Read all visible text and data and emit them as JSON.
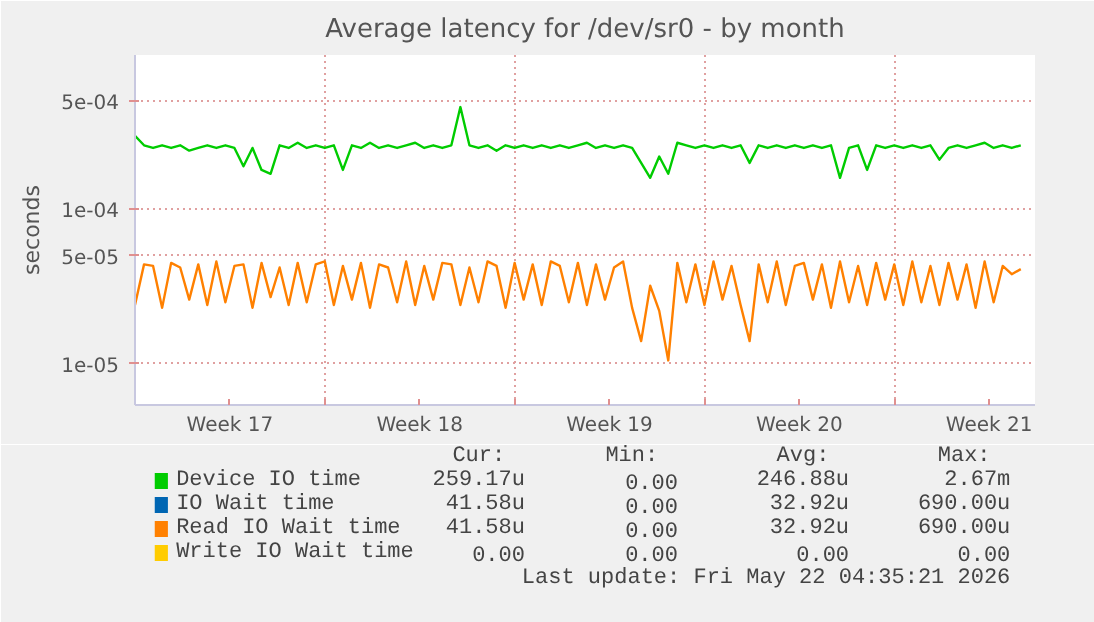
{
  "chart_data": {
    "type": "line",
    "title": "Average latency for /dev/sr0 - by month",
    "ylabel": "seconds",
    "log": "y",
    "grid": true,
    "legend": "bottom",
    "marker": "none",
    "line_style": "solid",
    "xlim": [
      "2026-04-19",
      "2026-05-22T04:35"
    ],
    "ylim": [
      5.4e-06,
      0.001
    ],
    "xticks": [
      {
        "value": "2026-04-19",
        "label": null
      },
      {
        "value": "2026-04-26",
        "label": null
      },
      {
        "value": "2026-05-03",
        "label": null
      },
      {
        "value": "2026-05-10",
        "label": null
      },
      {
        "value": "2026-05-17",
        "label": null
      },
      {
        "value": "2026-04-22T12:00",
        "label": "Week 17"
      },
      {
        "value": "2026-04-29T12:00",
        "label": "Week 18"
      },
      {
        "value": "2026-05-06T12:00",
        "label": "Week 19"
      },
      {
        "value": "2026-05-13T12:00",
        "label": "Week 20"
      },
      {
        "value": "2026-05-20T12:00",
        "label": "Week 21"
      }
    ],
    "yticks": [
      {
        "value": 1e-05,
        "label": "1e-05"
      },
      {
        "value": 5e-05,
        "label": "5e-05"
      },
      {
        "value": 0.0001,
        "label": "1e-04"
      },
      {
        "value": 0.0005,
        "label": "5e-04"
      }
    ],
    "x": [
      "2026-04-19T00:00",
      "2026-04-19T08:00",
      "2026-04-19T16:00",
      "2026-04-20T00:00",
      "2026-04-20T08:00",
      "2026-04-20T16:00",
      "2026-04-21T00:00",
      "2026-04-21T08:00",
      "2026-04-21T16:00",
      "2026-04-22T00:00",
      "2026-04-22T08:00",
      "2026-04-22T16:00",
      "2026-04-23T00:00",
      "2026-04-23T08:00",
      "2026-04-23T16:00",
      "2026-04-24T00:00",
      "2026-04-24T08:00",
      "2026-04-24T16:00",
      "2026-04-25T00:00",
      "2026-04-25T08:00",
      "2026-04-25T16:00",
      "2026-04-26T00:00",
      "2026-04-26T08:00",
      "2026-04-26T16:00",
      "2026-04-27T00:00",
      "2026-04-27T08:00",
      "2026-04-27T16:00",
      "2026-04-28T00:00",
      "2026-04-28T08:00",
      "2026-04-28T16:00",
      "2026-04-29T00:00",
      "2026-04-29T08:00",
      "2026-04-29T16:00",
      "2026-04-30T00:00",
      "2026-04-30T08:00",
      "2026-04-30T16:00",
      "2026-05-01T00:00",
      "2026-05-01T08:00",
      "2026-05-01T16:00",
      "2026-05-02T00:00",
      "2026-05-02T08:00",
      "2026-05-02T16:00",
      "2026-05-03T00:00",
      "2026-05-03T08:00",
      "2026-05-03T16:00",
      "2026-05-04T00:00",
      "2026-05-04T08:00",
      "2026-05-04T16:00",
      "2026-05-05T00:00",
      "2026-05-05T08:00",
      "2026-05-05T16:00",
      "2026-05-06T00:00",
      "2026-05-06T08:00",
      "2026-05-06T16:00",
      "2026-05-07T00:00",
      "2026-05-07T08:00",
      "2026-05-07T16:00",
      "2026-05-08T00:00",
      "2026-05-08T08:00",
      "2026-05-08T16:00",
      "2026-05-09T00:00",
      "2026-05-09T08:00",
      "2026-05-09T16:00",
      "2026-05-10T00:00",
      "2026-05-10T08:00",
      "2026-05-10T16:00",
      "2026-05-11T00:00",
      "2026-05-11T08:00",
      "2026-05-11T16:00",
      "2026-05-12T00:00",
      "2026-05-12T08:00",
      "2026-05-12T16:00",
      "2026-05-13T00:00",
      "2026-05-13T08:00",
      "2026-05-13T16:00",
      "2026-05-14T00:00",
      "2026-05-14T08:00",
      "2026-05-14T16:00",
      "2026-05-15T00:00",
      "2026-05-15T08:00",
      "2026-05-15T16:00",
      "2026-05-16T00:00",
      "2026-05-16T08:00",
      "2026-05-16T16:00",
      "2026-05-17T00:00",
      "2026-05-17T08:00",
      "2026-05-17T16:00",
      "2026-05-18T00:00",
      "2026-05-18T08:00",
      "2026-05-18T16:00",
      "2026-05-19T00:00",
      "2026-05-19T08:00",
      "2026-05-19T16:00",
      "2026-05-20T00:00",
      "2026-05-20T08:00",
      "2026-05-20T16:00",
      "2026-05-21T00:00",
      "2026-05-21T08:00",
      "2026-05-21T16:00"
    ],
    "series": [
      {
        "name": "Device IO time",
        "color": "#00cc00",
        "values": [
          0.0003,
          0.00026,
          0.00025,
          0.00026,
          0.00025,
          0.00026,
          0.00024,
          0.00025,
          0.00026,
          0.00025,
          0.00026,
          0.00025,
          0.00019,
          0.00025,
          0.00018,
          0.00017,
          0.00026,
          0.00025,
          0.00027,
          0.00025,
          0.00026,
          0.00025,
          0.00026,
          0.00018,
          0.00026,
          0.00025,
          0.00027,
          0.00025,
          0.00026,
          0.00025,
          0.00026,
          0.00027,
          0.00025,
          0.00026,
          0.00025,
          0.00026,
          0.00046,
          0.00026,
          0.00025,
          0.00026,
          0.00024,
          0.00026,
          0.00025,
          0.00026,
          0.00025,
          0.00026,
          0.00025,
          0.00026,
          0.00025,
          0.00026,
          0.00027,
          0.00025,
          0.00026,
          0.00025,
          0.00026,
          0.00025,
          0.0002,
          0.00016,
          0.00022,
          0.00017,
          0.00027,
          0.00026,
          0.00025,
          0.00026,
          0.00025,
          0.00026,
          0.00025,
          0.00026,
          0.0002,
          0.00026,
          0.00025,
          0.00026,
          0.00025,
          0.00026,
          0.00025,
          0.00026,
          0.00025,
          0.00026,
          0.00016,
          0.00025,
          0.00026,
          0.00018,
          0.00026,
          0.00025,
          0.00026,
          0.00025,
          0.00026,
          0.00025,
          0.00026,
          0.00021,
          0.00025,
          0.00026,
          0.00025,
          0.00026,
          0.00027,
          0.00025,
          0.00026,
          0.00025,
          0.00026
        ]
      },
      {
        "name": "IO Wait time",
        "color": "#0066b3",
        "values": [
          null,
          null,
          null,
          null,
          null,
          null,
          null,
          null,
          null,
          null,
          null,
          null,
          null,
          null,
          null,
          null,
          null,
          null,
          null,
          null,
          null,
          null,
          null,
          null,
          null,
          null,
          null,
          null,
          null,
          null,
          null,
          null,
          null,
          null,
          null,
          null,
          null,
          null,
          null,
          null,
          null,
          null,
          null,
          null,
          null,
          null,
          null,
          null,
          null,
          null,
          null,
          null,
          null,
          null,
          null,
          null,
          null,
          null,
          null,
          null,
          null,
          null,
          null,
          null,
          null,
          null,
          null,
          null,
          null,
          null,
          null,
          null,
          null,
          null,
          null,
          null,
          null,
          null,
          null,
          null,
          null,
          null,
          null,
          null,
          null,
          null,
          null,
          null,
          null,
          null,
          null,
          null,
          null,
          null,
          null,
          null,
          null,
          null,
          null
        ]
      },
      {
        "name": "Read IO Wait time",
        "color": "#ff8000",
        "values": [
          2.4e-05,
          4.4e-05,
          4.3e-05,
          2.3e-05,
          4.5e-05,
          4.2e-05,
          2.6e-05,
          4.4e-05,
          2.4e-05,
          4.6e-05,
          2.5e-05,
          4.3e-05,
          4.4e-05,
          2.3e-05,
          4.5e-05,
          2.7e-05,
          4.2e-05,
          2.4e-05,
          4.5e-05,
          2.5e-05,
          4.4e-05,
          4.6e-05,
          2.4e-05,
          4.3e-05,
          2.6e-05,
          4.5e-05,
          2.3e-05,
          4.4e-05,
          4.2e-05,
          2.5e-05,
          4.6e-05,
          2.4e-05,
          4.3e-05,
          2.6e-05,
          4.5e-05,
          4.4e-05,
          2.4e-05,
          4.2e-05,
          2.5e-05,
          4.6e-05,
          4.3e-05,
          2.3e-05,
          4.5e-05,
          2.6e-05,
          4.4e-05,
          2.4e-05,
          4.6e-05,
          4.3e-05,
          2.5e-05,
          4.5e-05,
          2.4e-05,
          4.4e-05,
          2.6e-05,
          4.2e-05,
          4.6e-05,
          2.3e-05,
          1.4e-05,
          3.2e-05,
          2.2e-05,
          1.05e-05,
          4.5e-05,
          2.5e-05,
          4.4e-05,
          2.4e-05,
          4.6e-05,
          2.6e-05,
          4.3e-05,
          2.4e-05,
          1.4e-05,
          4.4e-05,
          2.5e-05,
          4.6e-05,
          2.4e-05,
          4.3e-05,
          4.5e-05,
          2.6e-05,
          4.4e-05,
          2.3e-05,
          4.6e-05,
          2.5e-05,
          4.3e-05,
          2.4e-05,
          4.5e-05,
          2.6e-05,
          4.4e-05,
          2.4e-05,
          4.6e-05,
          2.5e-05,
          4.3e-05,
          2.4e-05,
          4.5e-05,
          2.6e-05,
          4.4e-05,
          2.3e-05,
          4.6e-05,
          2.5e-05,
          4.3e-05,
          3.8e-05,
          4.1e-05
        ]
      },
      {
        "name": "Write IO Wait time",
        "color": "#ffcc00",
        "values": [
          null,
          null,
          null,
          null,
          null,
          null,
          null,
          null,
          null,
          null,
          null,
          null,
          null,
          null,
          null,
          null,
          null,
          null,
          null,
          null,
          null,
          null,
          null,
          null,
          null,
          null,
          null,
          null,
          null,
          null,
          null,
          null,
          null,
          null,
          null,
          null,
          null,
          null,
          null,
          null,
          null,
          null,
          null,
          null,
          null,
          null,
          null,
          null,
          null,
          null,
          null,
          null,
          null,
          null,
          null,
          null,
          null,
          null,
          null,
          null,
          null,
          null,
          null,
          null,
          null,
          null,
          null,
          null,
          null,
          null,
          null,
          null,
          null,
          null,
          null,
          null,
          null,
          null,
          null,
          null,
          null,
          null,
          null,
          null,
          null,
          null,
          null,
          null,
          null,
          null,
          null,
          null,
          null,
          null,
          null,
          null,
          null,
          null,
          null
        ]
      }
    ],
    "annotations": [
      "Cur:",
      "Min:",
      "Avg:",
      "Max:",
      "259.17u",
      "0.00",
      "246.88u",
      "2.67m",
      "41.58u",
      "0.00",
      "32.92u",
      "690.00u",
      "41.58u",
      "0.00",
      "32.92u",
      "690.00u",
      "0.00",
      "0.00",
      "0.00",
      "0.00",
      "Last update: Fri May 22 04:35:21 2026"
    ]
  }
}
